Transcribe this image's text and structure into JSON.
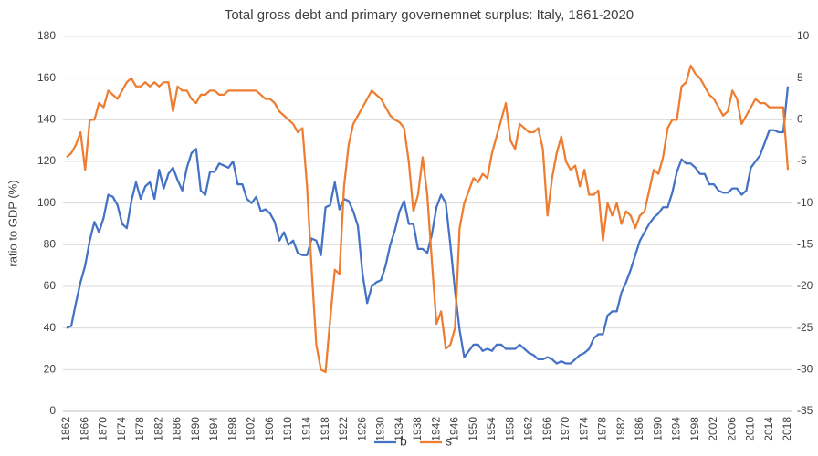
{
  "chart_data": {
    "type": "line",
    "title": "Total gross debt and primary governemnet surplus: Italy, 1861-2020",
    "ylabel": "ratio to GDP (%)",
    "categories": [
      "1862",
      null,
      null,
      null,
      "1866",
      null,
      null,
      null,
      "1870",
      null,
      null,
      null,
      "1874",
      null,
      null,
      null,
      "1878",
      null,
      null,
      null,
      "1882",
      null,
      null,
      null,
      "1886",
      null,
      null,
      null,
      "1890",
      null,
      null,
      null,
      "1894",
      null,
      null,
      null,
      "1898",
      null,
      null,
      null,
      "1902",
      null,
      null,
      null,
      "1906",
      null,
      null,
      null,
      "1910",
      null,
      null,
      null,
      "1914",
      null,
      null,
      null,
      "1918",
      null,
      null,
      null,
      "1922",
      null,
      null,
      null,
      "1926",
      null,
      null,
      null,
      "1930",
      null,
      null,
      null,
      "1934",
      null,
      null,
      null,
      "1938",
      null,
      null,
      null,
      "1942",
      null,
      null,
      null,
      "1946",
      null,
      null,
      null,
      "1950",
      null,
      null,
      null,
      "1954",
      null,
      null,
      null,
      "1958",
      null,
      null,
      null,
      "1962",
      null,
      null,
      null,
      "1966",
      null,
      null,
      null,
      "1970",
      null,
      null,
      null,
      "1974",
      null,
      null,
      null,
      "1978",
      null,
      null,
      null,
      "1982",
      null,
      null,
      null,
      "1986",
      null,
      null,
      null,
      "1990",
      null,
      null,
      null,
      "1994",
      null,
      null,
      null,
      "1998",
      null,
      null,
      null,
      "2002",
      null,
      null,
      null,
      "2006",
      null,
      null,
      null,
      "2010",
      null,
      null,
      null,
      "2014",
      null,
      null,
      null,
      "2018"
    ],
    "series": [
      {
        "name": "b",
        "color": "#4472c4",
        "values": [
          40,
          41,
          52,
          62,
          70,
          82,
          91,
          86,
          93,
          104,
          103,
          99,
          90,
          88,
          101,
          110,
          102,
          108,
          110,
          102,
          116,
          107,
          114,
          117,
          111,
          106,
          117,
          124,
          126,
          106,
          104,
          115,
          115,
          119,
          118,
          117,
          120,
          109,
          109,
          102,
          100,
          103,
          96,
          97,
          95,
          91,
          82,
          86,
          80,
          82,
          76,
          75,
          75,
          83,
          82,
          75,
          98,
          99,
          110,
          97,
          102,
          101,
          96,
          89,
          66,
          52,
          60,
          62,
          63,
          70,
          80,
          87,
          96,
          101,
          90,
          90,
          78,
          78,
          76,
          85,
          98,
          104,
          100,
          80,
          58,
          39,
          26,
          29,
          32,
          32,
          29,
          30,
          29,
          32,
          32,
          30,
          30,
          30,
          32,
          30,
          28,
          27,
          25,
          25,
          26,
          25,
          23,
          24,
          23,
          23,
          25,
          27,
          28,
          30,
          35,
          37,
          37,
          46,
          48,
          48,
          57,
          62,
          68,
          75,
          82,
          86,
          90,
          93,
          95,
          98,
          98,
          105,
          115,
          121,
          119,
          119,
          117,
          114,
          114,
          109,
          109,
          106,
          105,
          105,
          107,
          107,
          104,
          106,
          117,
          120,
          123,
          129,
          135,
          135,
          134,
          134,
          156
        ]
      },
      {
        "name": "s",
        "color": "#ed7d31",
        "axis": "y2",
        "values": [
          -4.5,
          -4,
          -3,
          -1.5,
          -6,
          0,
          0,
          2,
          1.5,
          3.5,
          3,
          2.5,
          3.5,
          4.5,
          5,
          4,
          4,
          4.5,
          4,
          4.5,
          4,
          4.5,
          4.5,
          1,
          4,
          3.5,
          3.5,
          2.5,
          2,
          3,
          3,
          3.5,
          3.5,
          3,
          3,
          3.5,
          3.5,
          3.5,
          3.5,
          3.5,
          3.5,
          3.5,
          3,
          2.5,
          2.5,
          2,
          1,
          0.5,
          0,
          -0.5,
          -1.5,
          -1,
          -8,
          -18,
          -27,
          -30,
          -30.3,
          -24,
          -18,
          -18.5,
          -8,
          -3,
          -0.5,
          0.5,
          1.5,
          2.5,
          3.5,
          3,
          2.5,
          1.5,
          0.5,
          0,
          -0.3,
          -1,
          -5,
          -11,
          -9,
          -4.5,
          -9,
          -17,
          -24.5,
          -23,
          -27.5,
          -27,
          -25,
          -13,
          -10,
          -8.5,
          -7,
          -7.5,
          -6.5,
          -7,
          -4,
          -2,
          0,
          2,
          -2.5,
          -3.5,
          -0.5,
          -1,
          -1.5,
          -1.5,
          -1,
          -3.5,
          -11.5,
          -7,
          -4,
          -2,
          -5,
          -6,
          -5.5,
          -8,
          -6,
          -9,
          -9,
          -8.5,
          -14.5,
          -10,
          -11.5,
          -10,
          -12.5,
          -11,
          -11.5,
          -13,
          -11.5,
          -11,
          -8.5,
          -6,
          -6.5,
          -4.5,
          -1,
          0,
          0,
          4,
          4.5,
          6.5,
          5.5,
          5,
          4,
          3,
          2.5,
          1.5,
          0.5,
          1,
          3.5,
          2.5,
          -0.5,
          0.5,
          1.5,
          2.5,
          2,
          2,
          1.5,
          1.5,
          1.5,
          1.5,
          -6
        ]
      }
    ],
    "ylim": [
      0,
      180
    ],
    "yticks": [
      0,
      20,
      40,
      60,
      80,
      100,
      120,
      140,
      160,
      180
    ],
    "y2lim": [
      -35,
      10
    ],
    "y2ticks": [
      -35,
      -30,
      -25,
      -20,
      -15,
      -10,
      -5,
      0,
      5,
      10
    ],
    "grid": true,
    "legend": "bottom"
  }
}
